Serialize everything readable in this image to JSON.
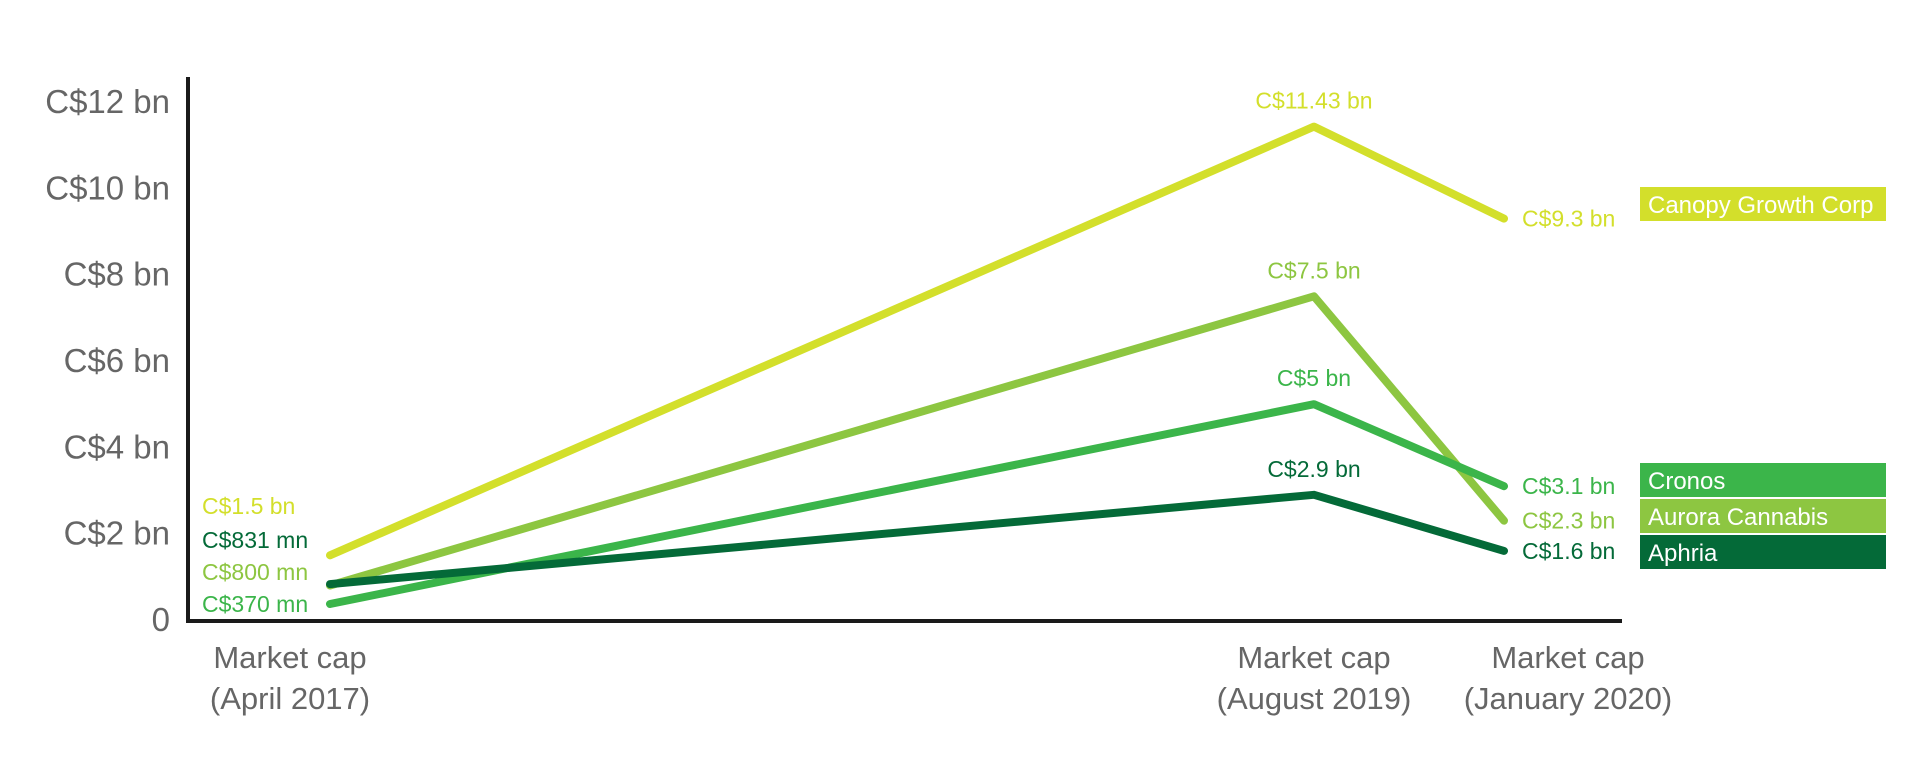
{
  "chart_data": {
    "type": "line",
    "title": "",
    "categories": [
      "Market cap (April 2017)",
      "Market cap (August 2019)",
      "Market cap (January 2020)"
    ],
    "category_lines": [
      [
        "Market cap",
        "(April 2017)"
      ],
      [
        "Market cap",
        "(August 2019)"
      ],
      [
        "Market cap",
        "(January 2020)"
      ]
    ],
    "x_positions": [
      0,
      11,
      13
    ],
    "ylim": [
      0,
      12
    ],
    "yticks": [
      0,
      2,
      4,
      6,
      8,
      10,
      12
    ],
    "ytick_labels": [
      "0",
      "C$2 bn",
      "C$4 bn",
      "C$6 bn",
      "C$8 bn",
      "C$10 bn",
      "C$12 bn"
    ],
    "grid": false,
    "legend_position": "right",
    "series": [
      {
        "name": "Canopy Growth Corp",
        "color": "#d3df2b",
        "values": [
          1.5,
          11.43,
          9.3
        ],
        "labels": [
          "C$1.5 bn",
          "C$11.43 bn",
          "C$9.3 bn"
        ]
      },
      {
        "name": "Aurora Cannabis",
        "color": "#8dc641",
        "values": [
          0.8,
          7.5,
          2.3
        ],
        "labels": [
          "C$800 mn",
          "C$7.5 bn",
          "C$2.3 bn"
        ]
      },
      {
        "name": "Cronos",
        "color": "#3bb54a",
        "values": [
          0.37,
          5,
          3.1
        ],
        "labels": [
          "C$370 mn",
          "C$5 bn",
          "C$3.1 bn"
        ]
      },
      {
        "name": "Aphria",
        "color": "#046a38",
        "values": [
          0.831,
          2.9,
          1.6
        ],
        "labels": [
          "C$831 mn",
          "C$2.9 bn",
          "C$1.6 bn"
        ]
      }
    ]
  }
}
